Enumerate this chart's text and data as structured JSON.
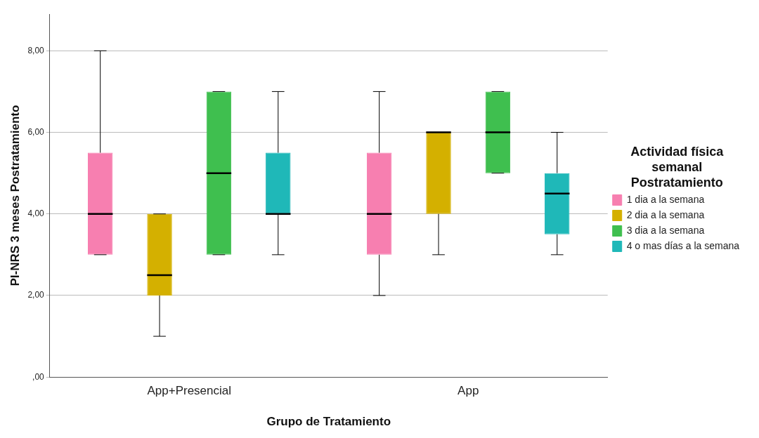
{
  "chart_data": {
    "type": "box",
    "xlabel": "Grupo de Tratamiento",
    "ylabel": "PI-NRS 3 meses Postratamiento",
    "legend_title": "Actividad física semanal Postratamiento",
    "categories": [
      "App+Presencial",
      "App"
    ],
    "series": [
      {
        "name": "1 dia a la semana",
        "color": "#f77fb0",
        "boxes": [
          {
            "low": 3,
            "q1": 3,
            "median": 4,
            "q3": 5.5,
            "high": 8
          },
          {
            "low": 2,
            "q1": 3,
            "median": 4,
            "q3": 5.5,
            "high": 7
          }
        ]
      },
      {
        "name": "2 dia a la semana",
        "color": "#d4b000",
        "boxes": [
          {
            "low": 1,
            "q1": 2,
            "median": 2.5,
            "q3": 4,
            "high": 4
          },
          {
            "low": 3,
            "q1": 4,
            "median": 6,
            "q3": 6,
            "high": 6
          }
        ]
      },
      {
        "name": "3 dia a la semana",
        "color": "#3fbf4f",
        "boxes": [
          {
            "low": 3,
            "q1": 3,
            "median": 5,
            "q3": 7,
            "high": 7
          },
          {
            "low": 5,
            "q1": 5,
            "median": 6,
            "q3": 7,
            "high": 7
          }
        ]
      },
      {
        "name": "4 o mas días a la semana",
        "color": "#1fb8b8",
        "boxes": [
          {
            "low": 3,
            "q1": 4,
            "median": 4,
            "q3": 5.5,
            "high": 7
          },
          {
            "low": 3,
            "q1": 3.5,
            "median": 4.5,
            "q3": 5,
            "high": 6
          }
        ]
      }
    ],
    "ylim": [
      0,
      8.9
    ],
    "yticks": [
      {
        "value": 0,
        "label": ",00"
      },
      {
        "value": 2,
        "label": "2,00"
      },
      {
        "value": 4,
        "label": "4,00"
      },
      {
        "value": 6,
        "label": "6,00"
      },
      {
        "value": 8,
        "label": "8,00"
      }
    ],
    "grid": "y",
    "legend": "right"
  }
}
